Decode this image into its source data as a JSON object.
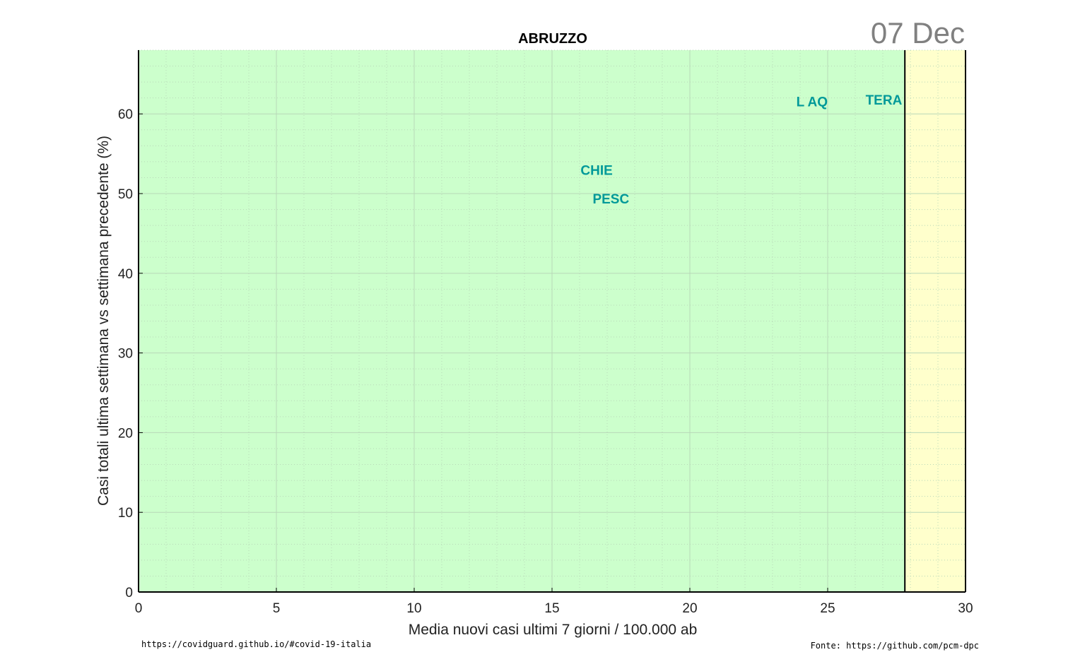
{
  "date_label": "07 Dec",
  "footer": {
    "left": "https://covidguard.github.io/#covid-19-italia",
    "right": "Fonte: https://github.com/pcm-dpc"
  },
  "colors": {
    "green_zone": "#ccffcc",
    "yellow_zone": "#ffffcc",
    "label": "#009999",
    "grid": "#b8d8b8",
    "axis": "#000000",
    "date": "#808080"
  },
  "chart_data": {
    "type": "scatter",
    "title": "ABRUZZO",
    "xlabel": "Media nuovi casi ultimi 7 giorni / 100.000 ab",
    "ylabel": "Casi totali ultima settimana vs settimana precedente (%)",
    "xlim": [
      0,
      30
    ],
    "ylim": [
      0,
      68
    ],
    "xticks": [
      0,
      5,
      10,
      15,
      20,
      25,
      30
    ],
    "yticks": [
      0,
      10,
      20,
      30,
      40,
      50,
      60
    ],
    "grid": true,
    "minor_grid": true,
    "zones": [
      {
        "name": "green",
        "from": 0,
        "to": 27.8
      },
      {
        "name": "yellow",
        "from": 27.8,
        "to": 30
      }
    ],
    "threshold_x": 27.8,
    "points": [
      {
        "label": "L AQ",
        "x": 25.0,
        "y": 61.5
      },
      {
        "label": "TERA",
        "x": 27.7,
        "y": 61.7
      },
      {
        "label": "CHIE",
        "x": 17.2,
        "y": 52.9
      },
      {
        "label": "PESC",
        "x": 17.8,
        "y": 49.3
      }
    ]
  }
}
